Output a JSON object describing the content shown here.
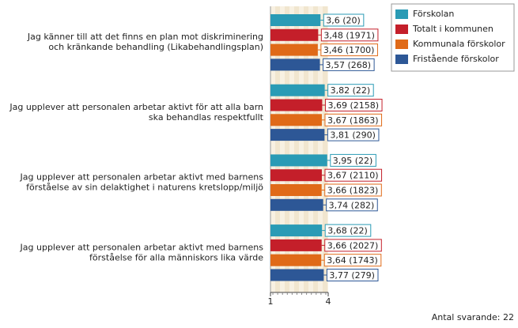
{
  "chart_data": {
    "type": "bar",
    "orientation": "horizontal",
    "categories": [
      [
        "Jag känner till att det finns en plan mot diskriminering",
        "och kränkande behandling (Likabehandlingsplan)"
      ],
      [
        "Jag upplever att personalen arbetar aktivt för att alla barn",
        "ska behandlas respektfullt"
      ],
      [
        "Jag upplever att personalen arbetar aktivt med barnens",
        "förståelse av sin delaktighet i naturens kretslopp/miljö"
      ],
      [
        "Jag upplever att personalen arbetar aktivt med barnens",
        "förståelse för alla människors lika värde"
      ]
    ],
    "series": [
      {
        "name": "Förskolan",
        "color": "#2a9bb5",
        "values": [
          3.6,
          3.82,
          3.95,
          3.68
        ],
        "value_labels": [
          "3,6 (20)",
          "3,82 (22)",
          "3,95 (22)",
          "3,68 (22)"
        ]
      },
      {
        "name": "Totalt i kommunen",
        "color": "#c41f2a",
        "values": [
          3.48,
          3.69,
          3.67,
          3.66
        ],
        "value_labels": [
          "3,48 (1971)",
          "3,69 (2158)",
          "3,67 (2110)",
          "3,66 (2027)"
        ]
      },
      {
        "name": "Kommunala förskolor",
        "color": "#e06a18",
        "values": [
          3.46,
          3.67,
          3.66,
          3.64
        ],
        "value_labels": [
          "3,46 (1700)",
          "3,67 (1863)",
          "3,66 (1823)",
          "3,64 (1743)"
        ]
      },
      {
        "name": "Fristående förskolor",
        "color": "#2d5796",
        "values": [
          3.57,
          3.81,
          3.74,
          3.77
        ],
        "value_labels": [
          "3,57 (268)",
          "3,81 (290)",
          "3,74 (282)",
          "3,77 (279)"
        ]
      }
    ],
    "xlim": [
      1,
      4
    ],
    "xticks": [
      1,
      4
    ],
    "legend": "top-right",
    "footnote": "Antal svarande: 22"
  }
}
